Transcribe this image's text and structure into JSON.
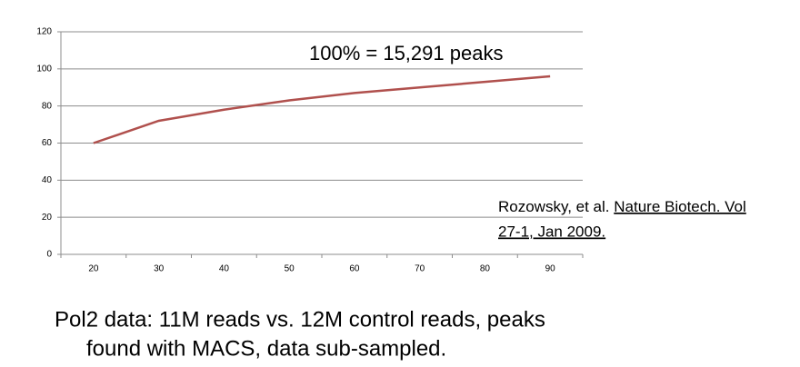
{
  "chart_data": {
    "type": "line",
    "annotation": "100% = 15,291  peaks",
    "citation_author": "Rozowsky, et al.",
    "citation_source_lines": [
      "Nature Biotech. Vol",
      "27-1, Jan 2009."
    ],
    "caption": [
      "Pol2 data: 11M reads vs. 12M control reads, peaks",
      "found with MACS, data sub-sampled."
    ],
    "categories": [
      20,
      30,
      40,
      50,
      60,
      70,
      80,
      90
    ],
    "series": [
      {
        "name": "peaks",
        "color": "#b0504d",
        "values": [
          60,
          72,
          78,
          83,
          87,
          90,
          93,
          96
        ]
      }
    ],
    "ylim": [
      0,
      120
    ],
    "yticks": [
      0,
      20,
      40,
      60,
      80,
      100,
      120
    ],
    "grid": true
  }
}
